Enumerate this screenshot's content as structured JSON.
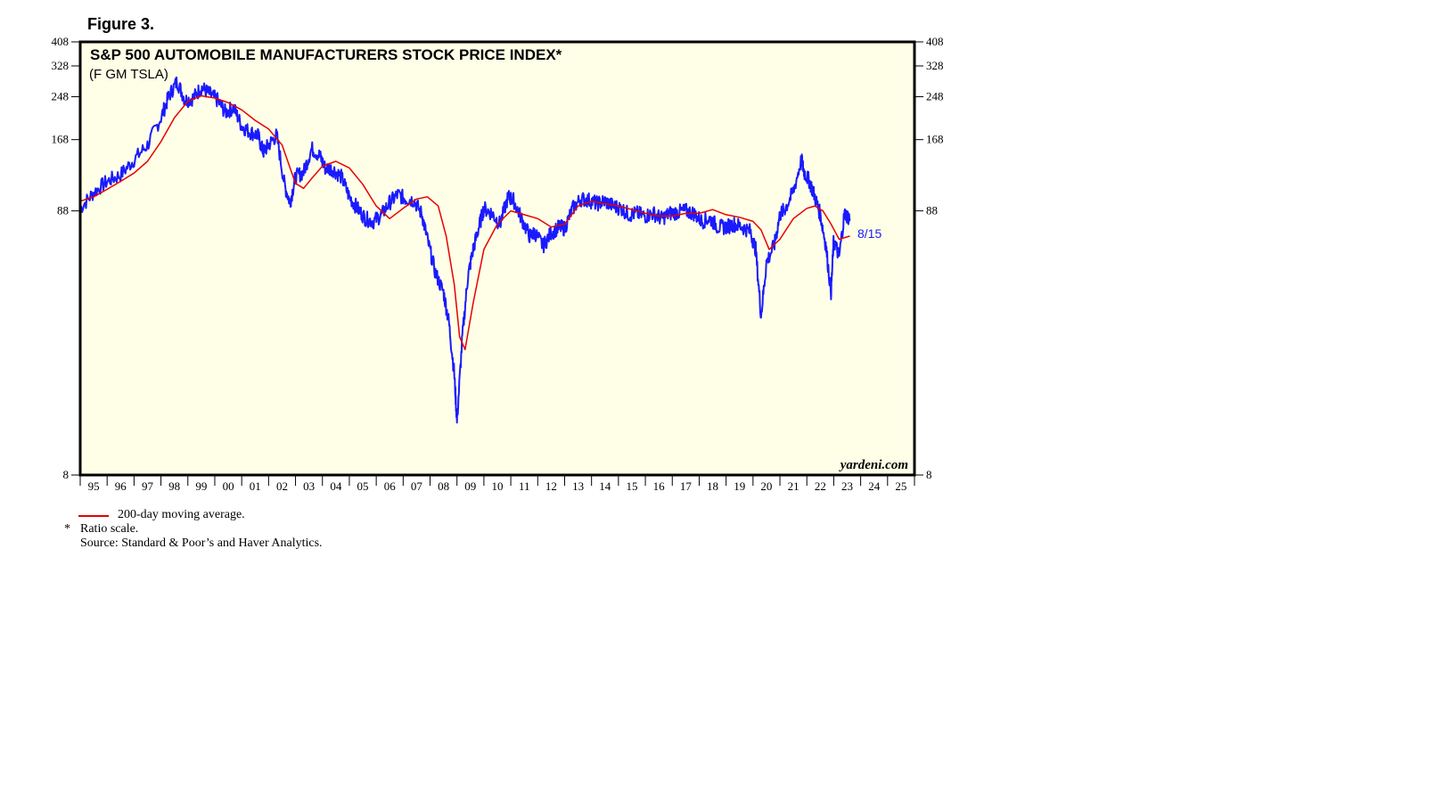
{
  "figure_label": "Figure 3.",
  "colors": {
    "plot_background": "#ffffe8",
    "index_line": "#1a1aff",
    "moving_average_line": "#e60000",
    "frame": "#000000"
  },
  "chart_data": {
    "type": "line",
    "title": "S&P 500 AUTOMOBILE MANUFACTURERS STOCK PRICE INDEX*",
    "subtitle": "(F GM TSLA)",
    "y_scale": "log",
    "ylim": [
      8,
      408
    ],
    "y_ticks": [
      8,
      88,
      168,
      248,
      328,
      408
    ],
    "y_tick_labels": [
      "8",
      "88",
      "168",
      "248",
      "328",
      "408"
    ],
    "xlim": [
      "1995-01",
      "2025-12"
    ],
    "x_tick_labels": [
      "95",
      "96",
      "97",
      "98",
      "99",
      "00",
      "01",
      "02",
      "03",
      "04",
      "05",
      "06",
      "07",
      "08",
      "09",
      "10",
      "11",
      "12",
      "13",
      "14",
      "15",
      "16",
      "17",
      "18",
      "19",
      "20",
      "21",
      "22",
      "23",
      "24",
      "25"
    ],
    "grid": false,
    "end_annotation": "8/15",
    "watermark": "yardeni.com",
    "series": [
      {
        "name": "S&P 500 Automobile Manufacturers Stock Price Index",
        "color": "#1a1aff",
        "x": [
          1995.0,
          1995.5,
          1996.0,
          1996.5,
          1997.0,
          1997.5,
          1998.0,
          1998.3,
          1998.6,
          1998.9,
          1999.2,
          1999.5,
          1999.8,
          2000.1,
          2000.4,
          2000.7,
          2001.0,
          2001.3,
          2001.6,
          2001.8,
          2002.0,
          2002.3,
          2002.6,
          2002.8,
          2003.0,
          2003.3,
          2003.6,
          2003.9,
          2004.1,
          2004.4,
          2004.7,
          2005.0,
          2005.3,
          2005.6,
          2005.9,
          2006.2,
          2006.5,
          2006.8,
          2007.1,
          2007.4,
          2007.7,
          2007.9,
          2008.2,
          2008.5,
          2008.7,
          2008.9,
          2009.0,
          2009.2,
          2009.4,
          2009.6,
          2009.8,
          2010.0,
          2010.3,
          2010.6,
          2010.9,
          2011.1,
          2011.4,
          2011.7,
          2011.9,
          2012.2,
          2012.5,
          2012.8,
          2013.0,
          2013.3,
          2013.6,
          2013.9,
          2014.2,
          2014.5,
          2014.8,
          2015.1,
          2015.4,
          2015.7,
          2016.0,
          2016.3,
          2016.6,
          2016.9,
          2017.2,
          2017.5,
          2017.8,
          2018.1,
          2018.4,
          2018.7,
          2019.0,
          2019.3,
          2019.6,
          2019.9,
          2020.1,
          2020.3,
          2020.5,
          2020.8,
          2021.0,
          2021.2,
          2021.5,
          2021.8,
          2021.9,
          2022.1,
          2022.3,
          2022.5,
          2022.7,
          2022.9,
          2023.0,
          2023.2,
          2023.4,
          2023.6
        ],
        "values": [
          90,
          104,
          115,
          122,
          140,
          160,
          205,
          250,
          285,
          240,
          245,
          270,
          255,
          240,
          215,
          225,
          190,
          180,
          175,
          150,
          160,
          175,
          110,
          95,
          120,
          125,
          155,
          145,
          130,
          128,
          120,
          100,
          90,
          82,
          80,
          85,
          95,
          102,
          98,
          97,
          85,
          68,
          50,
          42,
          32,
          20,
          13,
          28,
          48,
          62,
          75,
          90,
          86,
          78,
          100,
          97,
          82,
          70,
          72,
          64,
          72,
          76,
          75,
          90,
          98,
          97,
          94,
          96,
          92,
          90,
          85,
          86,
          84,
          86,
          82,
          86,
          87,
          88,
          86,
          80,
          82,
          76,
          76,
          78,
          76,
          73,
          62,
          34,
          55,
          65,
          85,
          90,
          105,
          140,
          125,
          115,
          100,
          85,
          65,
          42,
          68,
          58,
          86,
          82
        ]
      },
      {
        "name": "200-day moving average.",
        "color": "#e60000",
        "x": [
          1995.0,
          1995.5,
          1996.0,
          1996.5,
          1997.0,
          1997.5,
          1998.0,
          1998.5,
          1999.0,
          1999.5,
          2000.0,
          2000.5,
          2001.0,
          2001.5,
          2002.0,
          2002.5,
          2003.0,
          2003.3,
          2003.6,
          2004.0,
          2004.5,
          2005.0,
          2005.5,
          2006.0,
          2006.5,
          2007.0,
          2007.5,
          2007.9,
          2008.3,
          2008.6,
          2008.9,
          2009.1,
          2009.3,
          2009.6,
          2010.0,
          2010.5,
          2011.0,
          2011.5,
          2012.0,
          2012.5,
          2013.0,
          2013.5,
          2014.0,
          2014.5,
          2015.0,
          2015.5,
          2016.0,
          2016.5,
          2017.0,
          2017.5,
          2018.0,
          2018.5,
          2019.0,
          2019.5,
          2020.0,
          2020.3,
          2020.6,
          2021.0,
          2021.5,
          2022.0,
          2022.3,
          2022.6,
          2022.9,
          2023.2,
          2023.6
        ],
        "values": [
          96,
          100,
          107,
          115,
          124,
          138,
          165,
          205,
          238,
          250,
          245,
          235,
          220,
          200,
          185,
          160,
          113,
          108,
          118,
          132,
          138,
          130,
          112,
          92,
          82,
          90,
          98,
          100,
          92,
          70,
          45,
          28,
          25,
          38,
          62,
          78,
          88,
          85,
          82,
          76,
          78,
          92,
          96,
          94,
          92,
          89,
          86,
          84,
          84,
          86,
          86,
          89,
          85,
          83,
          80,
          74,
          62,
          68,
          82,
          90,
          92,
          88,
          78,
          68,
          70
        ]
      }
    ]
  },
  "notes": {
    "legend_label": "200-day moving average.",
    "star": "*",
    "ratio_note": "Ratio scale.",
    "source_note": "Source: Standard & Poor’s and Haver Analytics."
  }
}
